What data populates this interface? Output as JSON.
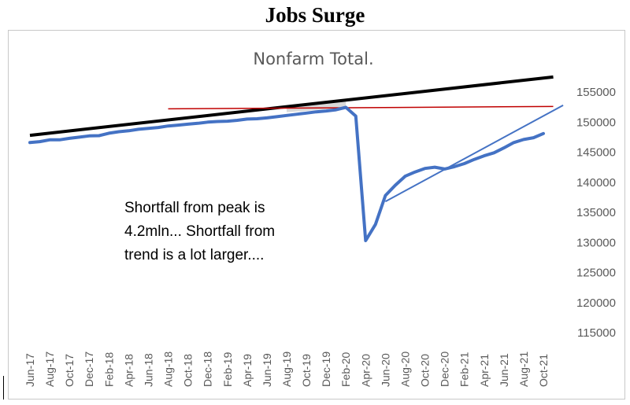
{
  "headline": "Jobs Surge",
  "chart_data": {
    "type": "line",
    "title": "Nonfarm Total.",
    "xlabel": "",
    "ylabel": "",
    "ylim": [
      115000,
      155000
    ],
    "y_ticks": [
      155000,
      150000,
      145000,
      140000,
      135000,
      130000,
      125000,
      120000,
      115000
    ],
    "x_tick_labels": [
      "Jun-17",
      "Aug-17",
      "Oct-17",
      "Dec-17",
      "Feb-18",
      "Apr-18",
      "Jun-18",
      "Aug-18",
      "Oct-18",
      "Dec-18",
      "Feb-19",
      "Apr-19",
      "Jun-19",
      "Aug-19",
      "Oct-19",
      "Dec-19",
      "Feb-20",
      "Apr-20",
      "Jun-20",
      "Aug-20",
      "Oct-20",
      "Dec-20",
      "Feb-21",
      "Apr-21",
      "Jun-21",
      "Aug-21",
      "Oct-21"
    ],
    "legend": "none",
    "grid": false,
    "series": [
      {
        "color": "#4472c4",
        "x": [
          "Jun-17",
          "Jul-17",
          "Aug-17",
          "Sep-17",
          "Oct-17",
          "Nov-17",
          "Dec-17",
          "Jan-18",
          "Feb-18",
          "Mar-18",
          "Apr-18",
          "May-18",
          "Jun-18",
          "Jul-18",
          "Aug-18",
          "Sep-18",
          "Oct-18",
          "Nov-18",
          "Dec-18",
          "Jan-19",
          "Feb-19",
          "Mar-19",
          "Apr-19",
          "May-19",
          "Jun-19",
          "Jul-19",
          "Aug-19",
          "Sep-19",
          "Oct-19",
          "Nov-19",
          "Dec-19",
          "Jan-20",
          "Feb-20",
          "Mar-20",
          "Apr-20",
          "May-20",
          "Jun-20",
          "Jul-20",
          "Aug-20",
          "Sep-20",
          "Oct-20",
          "Nov-20",
          "Dec-20",
          "Jan-21",
          "Feb-21",
          "Mar-21",
          "Apr-21",
          "May-21",
          "Jun-21",
          "Jul-21",
          "Aug-21",
          "Sep-21",
          "Oct-21"
        ],
        "values": [
          146600,
          146750,
          147050,
          147050,
          147300,
          147500,
          147700,
          147750,
          148150,
          148400,
          148550,
          148800,
          148950,
          149100,
          149350,
          149500,
          149650,
          149800,
          150000,
          150100,
          150150,
          150300,
          150500,
          150550,
          150700,
          150900,
          151100,
          151300,
          151500,
          151700,
          151850,
          152050,
          152450,
          151000,
          130300,
          133000,
          137800,
          139500,
          141000,
          141700,
          142300,
          142500,
          142200,
          142600,
          143100,
          143800,
          144400,
          144900,
          145700,
          146600,
          147100,
          147400,
          148100
        ]
      }
    ],
    "overlays": [
      {
        "kind": "trend-line",
        "color": "#000000",
        "points": [
          [
            "Jun-17",
            147800
          ],
          [
            "Nov-21",
            157500
          ]
        ]
      },
      {
        "kind": "peak-level-line",
        "color": "#c00000",
        "points": [
          [
            "Aug-18",
            152200
          ],
          [
            "Nov-21",
            152600
          ]
        ]
      },
      {
        "kind": "recovery-trend-line",
        "color": "#4472c4",
        "points": [
          [
            "Jun-20",
            136800
          ],
          [
            "Dec-21",
            152800
          ]
        ]
      }
    ],
    "annotation": [
      "Shortfall from peak is",
      "4.2mln... Shortfall from",
      "trend is a lot larger...."
    ]
  }
}
